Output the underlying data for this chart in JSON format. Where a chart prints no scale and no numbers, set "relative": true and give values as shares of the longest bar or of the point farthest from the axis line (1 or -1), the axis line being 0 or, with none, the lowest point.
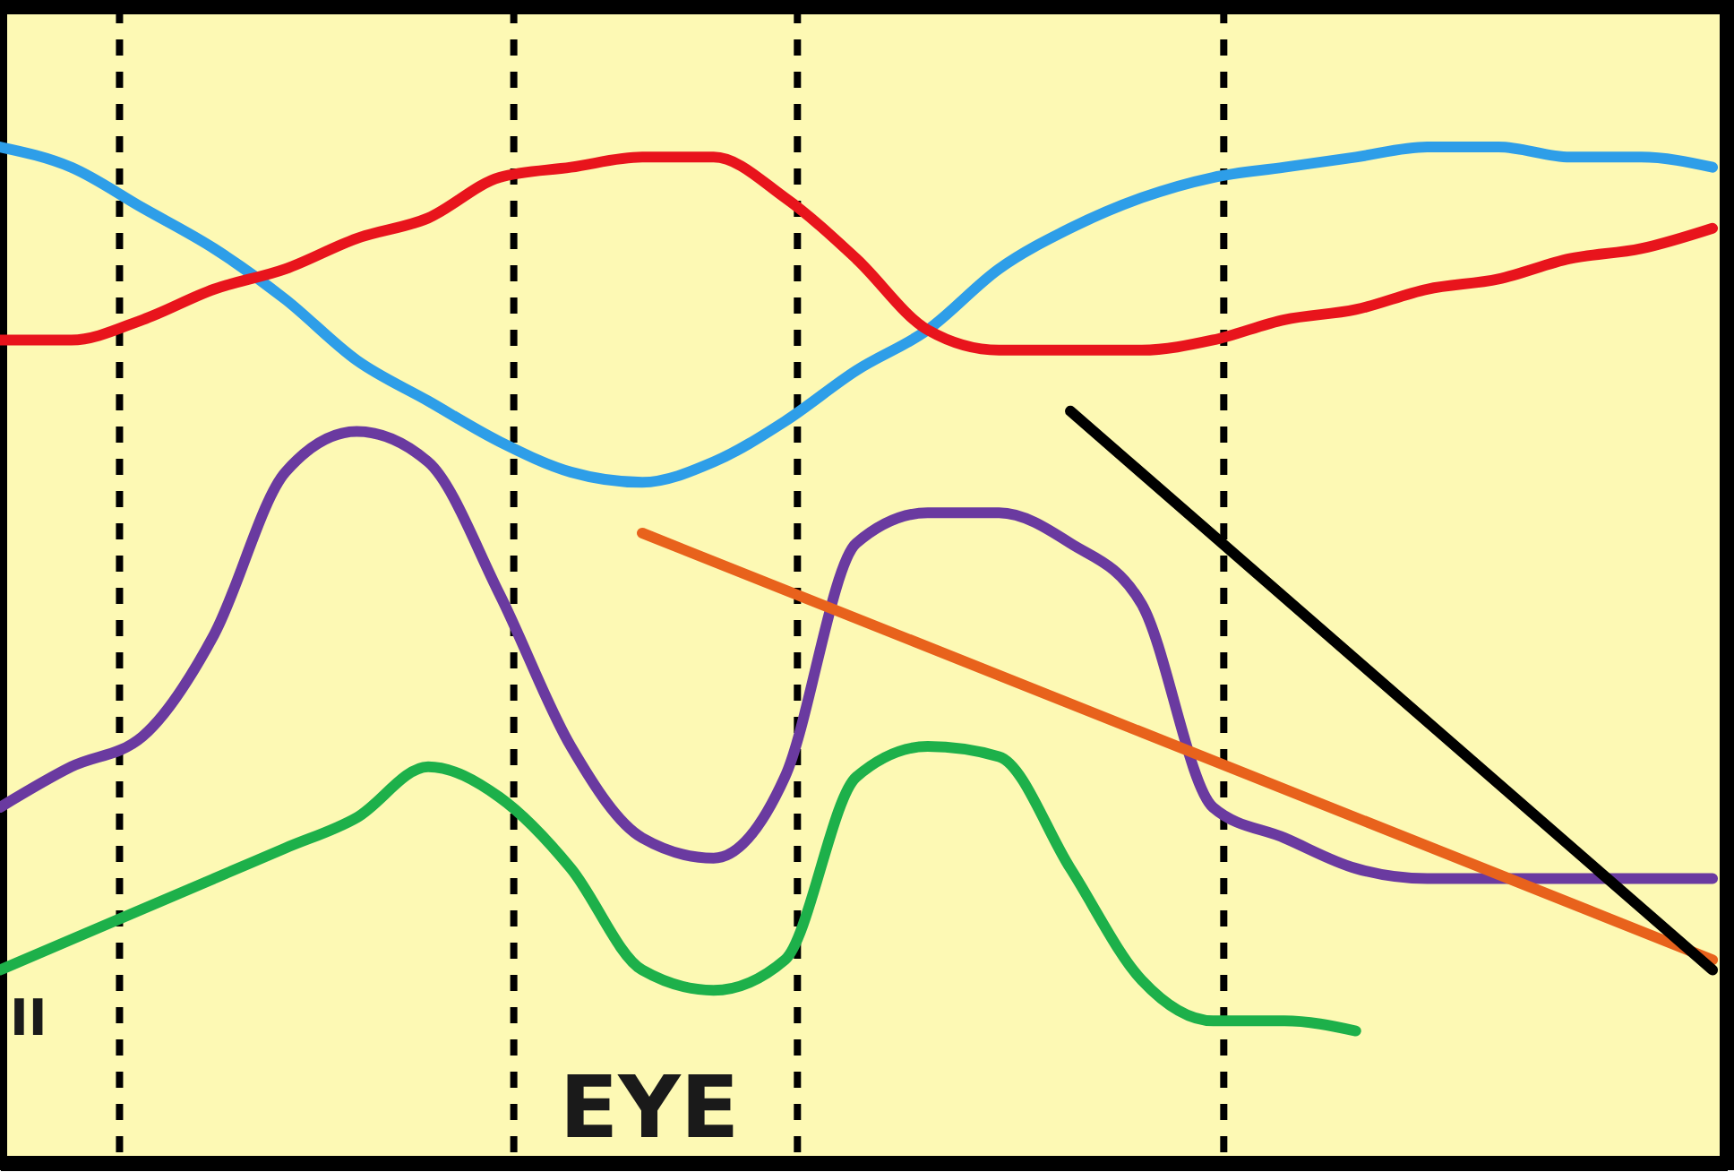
{
  "chart_data": {
    "type": "line",
    "relative": true,
    "categories": [
      null,
      null,
      null,
      null,
      null,
      null,
      null,
      null,
      null,
      null,
      null,
      null,
      null,
      null,
      null,
      null,
      null,
      null,
      null,
      null,
      null,
      null,
      null,
      null,
      null
    ],
    "series": [
      {
        "color": "#2e9ee8",
        "values": [
          1.0,
          0.98,
          0.94,
          0.9,
          0.85,
          0.79,
          0.75,
          0.71,
          0.68,
          0.67,
          0.69,
          0.73,
          0.78,
          0.82,
          0.88,
          0.92,
          0.95,
          0.97,
          0.98,
          0.99,
          1.0,
          1.0,
          0.99,
          0.99,
          0.98
        ]
      },
      {
        "color": "#e8141c",
        "values": [
          0.81,
          0.81,
          0.83,
          0.86,
          0.88,
          0.91,
          0.93,
          0.97,
          0.98,
          0.99,
          0.99,
          0.95,
          0.89,
          0.82,
          0.8,
          0.8,
          0.8,
          0.81,
          0.83,
          0.84,
          0.86,
          0.87,
          0.89,
          0.9,
          0.92
        ]
      },
      {
        "color": "#6a3aa0",
        "values": [
          0.35,
          0.39,
          0.42,
          0.52,
          0.68,
          0.72,
          0.69,
          0.56,
          0.41,
          0.32,
          0.3,
          0.38,
          0.61,
          0.64,
          0.64,
          0.61,
          0.55,
          0.35,
          0.32,
          0.29,
          0.28,
          0.28,
          0.28,
          0.28,
          0.28
        ]
      },
      {
        "color": "#1db04a",
        "values": [
          0.19,
          0.22,
          0.25,
          0.28,
          0.31,
          0.34,
          0.39,
          0.36,
          0.29,
          0.19,
          0.17,
          0.2,
          0.38,
          0.41,
          0.4,
          0.29,
          0.18,
          0.14,
          0.14,
          0.13,
          null,
          null,
          null,
          null,
          null
        ]
      },
      {
        "color": "#e8621c",
        "values": [
          null,
          null,
          null,
          null,
          null,
          null,
          null,
          null,
          null,
          0.62,
          null,
          null,
          null,
          null,
          null,
          null,
          null,
          null,
          null,
          null,
          null,
          null,
          null,
          null,
          0.2
        ]
      },
      {
        "color": "#000000",
        "values": [
          null,
          null,
          null,
          null,
          null,
          null,
          null,
          null,
          null,
          null,
          null,
          null,
          null,
          null,
          null,
          0.74,
          null,
          null,
          null,
          null,
          null,
          null,
          null,
          null,
          0.19
        ]
      }
    ],
    "annotations": [
      "II",
      "EYE"
    ]
  }
}
